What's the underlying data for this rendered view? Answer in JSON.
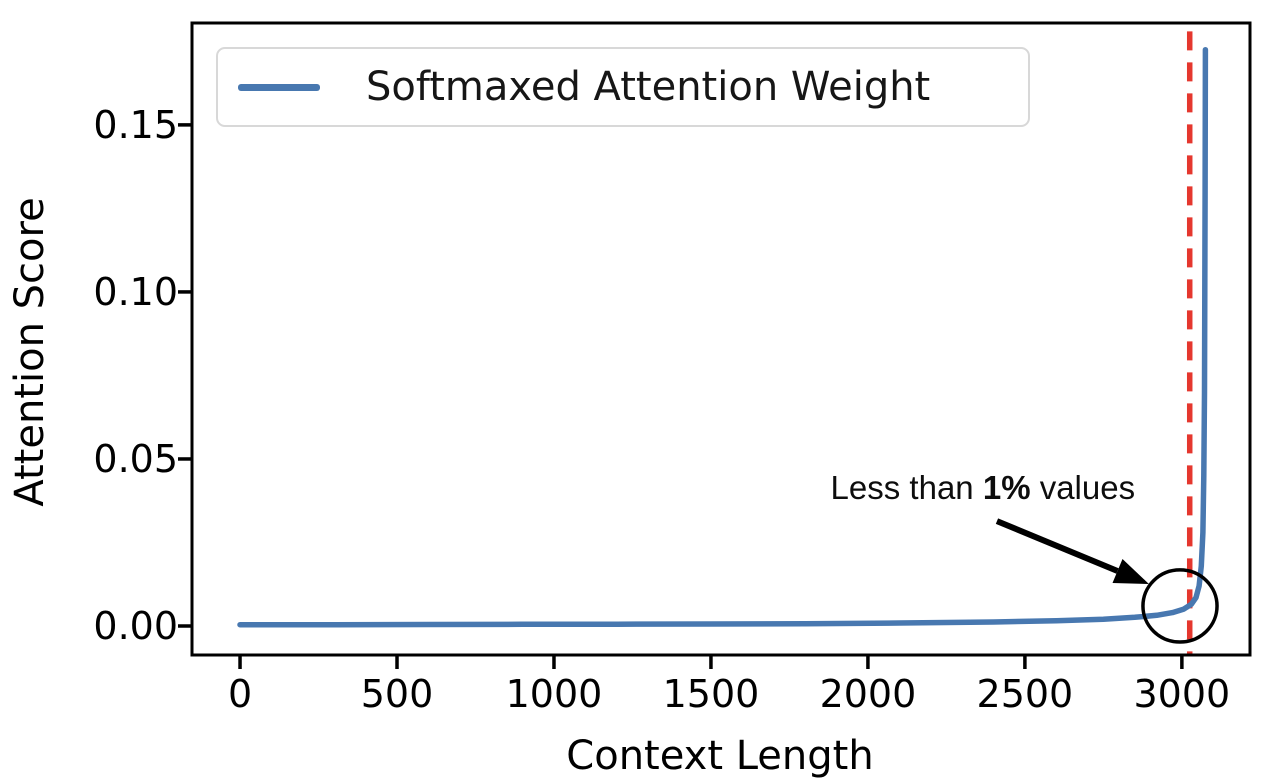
{
  "chart_data": {
    "type": "line",
    "title": "",
    "xlabel": "Context Length",
    "ylabel": "Attention Score",
    "grid": false,
    "background": "#ffffff",
    "axes": {
      "xlim": [
        -153,
        3217
      ],
      "ylim": [
        -0.00868,
        0.1805
      ],
      "xticks": {
        "values": [
          0,
          500,
          1000,
          1500,
          2000,
          2500,
          3000
        ],
        "labels": [
          "0",
          "500",
          "1000",
          "1500",
          "2000",
          "2500",
          "3000"
        ]
      },
      "yticks": {
        "values": [
          0,
          0.05,
          0.1,
          0.15
        ],
        "labels": [
          "0.00",
          "0.05",
          "0.10",
          "0.15"
        ]
      }
    },
    "legend": {
      "position": "upper left",
      "entries": [
        {
          "label": "Softmaxed Attention Weight",
          "color": "#4878b0"
        }
      ]
    },
    "series": [
      {
        "name": "Softmaxed Attention Weight",
        "color": "#4878b0",
        "line_width": 5.5,
        "x": [
          0,
          300,
          600,
          900,
          1200,
          1500,
          1800,
          2100,
          2400,
          2600,
          2750,
          2850,
          2920,
          2970,
          3005,
          3030,
          3045,
          3055,
          3062,
          3067,
          3070,
          3072,
          3073,
          3074,
          3075
        ],
        "y": [
          0.0004,
          0.0004,
          0.00045,
          0.0005,
          0.00055,
          0.0006,
          0.0007,
          0.0009,
          0.0012,
          0.0016,
          0.002,
          0.0026,
          0.0032,
          0.004,
          0.005,
          0.0065,
          0.0085,
          0.012,
          0.018,
          0.028,
          0.045,
          0.07,
          0.1,
          0.13,
          0.1725
        ]
      }
    ],
    "vline": {
      "x": 3025,
      "color": "#e5372e",
      "style": "dashed",
      "y_extent": [
        -0.0085,
        0.178
      ],
      "line_width": 5.5
    },
    "annotation": {
      "text_prefix": "Less than ",
      "text_bold": "1%",
      "text_suffix": " values",
      "text_xy": [
        2366,
        0.0413
      ],
      "arrow_tail_xy": [
        2411,
        0.0314
      ],
      "arrow_tip_xy": [
        2895,
        0.01257
      ],
      "circle_center_xy": [
        2994,
        0.006
      ],
      "circle_rx": 118,
      "circle_ry": 0.0108,
      "color": "#000000"
    }
  }
}
